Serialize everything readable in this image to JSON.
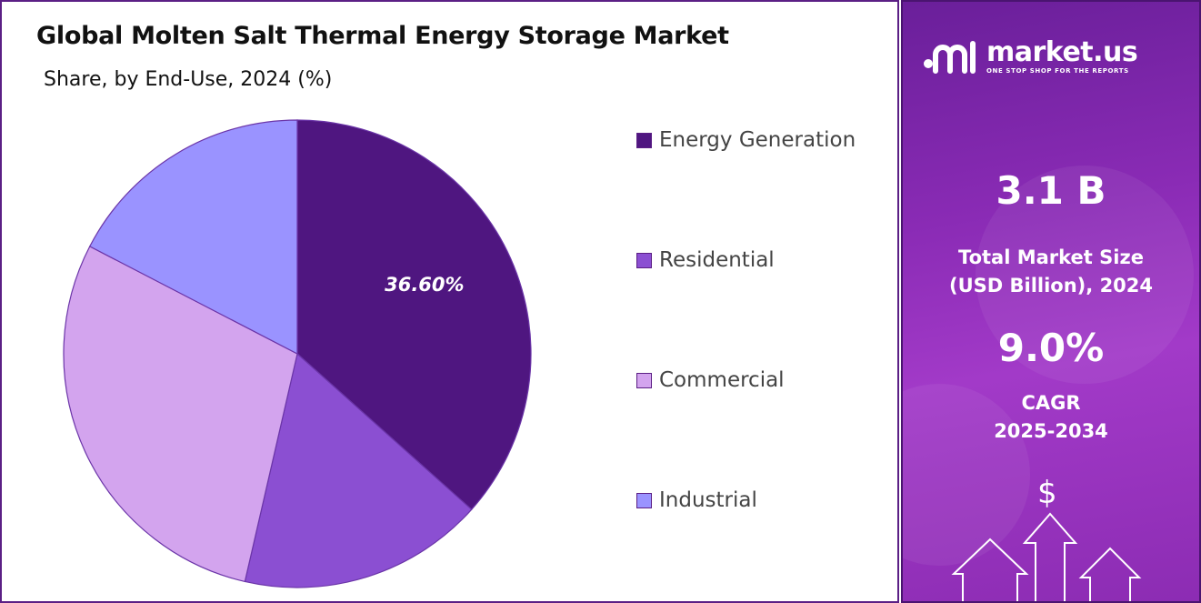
{
  "title": "Global Molten Salt Thermal Energy Storage Market",
  "subtitle": "Share, by End-Use, 2024 (%)",
  "chart_data": {
    "type": "pie",
    "title": "Global Molten Salt Thermal Energy Storage Market",
    "subtitle": "Share, by End-Use, 2024 (%)",
    "categories": [
      "Energy Generation",
      "Residential",
      "Commercial",
      "Industrial"
    ],
    "values": [
      36.6,
      17.0,
      29.0,
      17.4
    ],
    "colors": [
      "#4f1680",
      "#8b4fd2",
      "#d3a4ee",
      "#9a93ff"
    ],
    "data_labels": [
      "36.60%",
      "",
      "",
      ""
    ],
    "legend_position": "right"
  },
  "legend": {
    "items": [
      {
        "label": "Energy Generation",
        "color": "#4f1680"
      },
      {
        "label": "Residential",
        "color": "#8b4fd2"
      },
      {
        "label": "Commercial",
        "color": "#d3a4ee"
      },
      {
        "label": "Industrial",
        "color": "#9a93ff"
      }
    ]
  },
  "brand": {
    "name": "market.us",
    "tagline": "ONE STOP SHOP FOR THE REPORTS",
    "logo_icon": "market-us-logo-icon"
  },
  "stats": {
    "market_size_value": "3.1 B",
    "market_size_label_line1": "Total Market Size",
    "market_size_label_line2": "(USD Billion), 2024",
    "cagr_value": "9.0%",
    "cagr_label_line1": "CAGR",
    "cagr_label_line2": "2025-2034",
    "dollar_symbol": "$"
  },
  "colors": {
    "accent": "#5b1f85",
    "panel_gradient_start": "#6a1f9a",
    "panel_gradient_end": "#a23ac8"
  }
}
